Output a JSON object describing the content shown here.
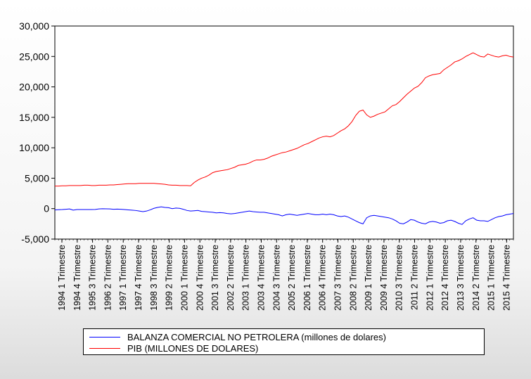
{
  "chart_data": {
    "type": "line",
    "title": "",
    "xlabel": "",
    "ylabel": "",
    "ylim": [
      -5000,
      30000
    ],
    "y_ticks": [
      -5000,
      0,
      5000,
      10000,
      15000,
      20000,
      25000,
      30000
    ],
    "y_tick_labels": [
      "-5,000",
      "0",
      "5,000",
      "10,000",
      "15,000",
      "20,000",
      "25,000",
      "30,000"
    ],
    "x_tick_labels": [
      "1994 1 Trimestre",
      "1994 4 Trimestre",
      "1995 3 Trimestre",
      "1996 2 Trimestre",
      "1997 1 Trimestre",
      "1997 4 Trimestre",
      "1998 3 Trimestre",
      "1999 2 Trimestre",
      "2000 1 Trimestre",
      "2000 4 Trimestre",
      "2001 3 Trimestre",
      "2002 2 Trimestre",
      "2003 1 Trimestre",
      "2003 4 Trimestre",
      "2004 3 Trimestre",
      "2005 2 Trimestre",
      "2006 1 Trimestre",
      "2006 4 Trimestre",
      "2007 3 Trimestre",
      "2008 2 Trimestre",
      "2009 1 Trimestre",
      "2009 4 Trimestre",
      "2010 3 Trimestre",
      "2011 2 Trimestre",
      "2012 1 Trimestre",
      "2012 4 Trimestre",
      "2013 3 Trimestre",
      "2014 2 Trimestre",
      "2015 1 Trimestre",
      "2015 4 Trimestre"
    ],
    "grid": false,
    "legend_position": "bottom",
    "series": [
      {
        "name": "BALANZA COMERCIAL NO PETROLERA (millones de dolares)",
        "color": "#0000ff",
        "values": [
          -200,
          -180,
          -150,
          -100,
          -50,
          -250,
          -150,
          -150,
          -150,
          -150,
          -150,
          -130,
          -50,
          -20,
          -30,
          -50,
          -100,
          -80,
          -100,
          -150,
          -200,
          -250,
          -300,
          -400,
          -500,
          -400,
          -200,
          50,
          200,
          300,
          200,
          150,
          0,
          100,
          50,
          -100,
          -300,
          -400,
          -350,
          -300,
          -450,
          -500,
          -550,
          -600,
          -700,
          -650,
          -700,
          -800,
          -850,
          -800,
          -700,
          -600,
          -500,
          -400,
          -500,
          -550,
          -600,
          -600,
          -700,
          -800,
          -900,
          -1000,
          -1200,
          -1000,
          -900,
          -1000,
          -1100,
          -1000,
          -900,
          -800,
          -900,
          -1000,
          -1000,
          -900,
          -1000,
          -900,
          -1000,
          -1200,
          -1300,
          -1200,
          -1400,
          -1700,
          -2000,
          -2300,
          -2500,
          -1500,
          -1200,
          -1100,
          -1200,
          -1300,
          -1400,
          -1500,
          -1700,
          -2000,
          -2400,
          -2500,
          -2200,
          -1800,
          -1900,
          -2200,
          -2400,
          -2500,
          -2200,
          -2100,
          -2200,
          -2400,
          -2300,
          -2000,
          -1900,
          -2100,
          -2400,
          -2600,
          -2000,
          -1700,
          -1500,
          -1900,
          -2000,
          -2000,
          -2100,
          -1800,
          -1500,
          -1300,
          -1200,
          -1000,
          -900,
          -800
        ]
      },
      {
        "name": "PIB (MILLONES DE DOLARES)",
        "color": "#ff0000",
        "values": [
          3700,
          3700,
          3750,
          3750,
          3800,
          3800,
          3800,
          3800,
          3850,
          3850,
          3800,
          3800,
          3850,
          3850,
          3850,
          3900,
          3900,
          3950,
          4000,
          4050,
          4100,
          4100,
          4100,
          4150,
          4150,
          4150,
          4150,
          4150,
          4100,
          4050,
          4000,
          3900,
          3850,
          3850,
          3800,
          3800,
          3800,
          3750,
          4300,
          4700,
          5000,
          5200,
          5500,
          5900,
          6100,
          6200,
          6300,
          6400,
          6600,
          6800,
          7100,
          7200,
          7300,
          7500,
          7800,
          8000,
          8000,
          8100,
          8300,
          8600,
          8800,
          9000,
          9200,
          9300,
          9500,
          9700,
          9900,
          10200,
          10500,
          10700,
          11000,
          11300,
          11600,
          11800,
          11900,
          11800,
          12000,
          12400,
          12800,
          13100,
          13600,
          14300,
          15300,
          16000,
          16200,
          15400,
          15000,
          15200,
          15500,
          15700,
          15900,
          16400,
          16900,
          17100,
          17600,
          18200,
          18800,
          19300,
          19800,
          20100,
          20700,
          21500,
          21800,
          22000,
          22100,
          22200,
          22800,
          23200,
          23600,
          24100,
          24300,
          24600,
          25000,
          25300,
          25600,
          25300,
          25000,
          24900,
          25400,
          25200,
          25000,
          24900,
          25100,
          25200,
          25000,
          24900
        ]
      }
    ]
  }
}
